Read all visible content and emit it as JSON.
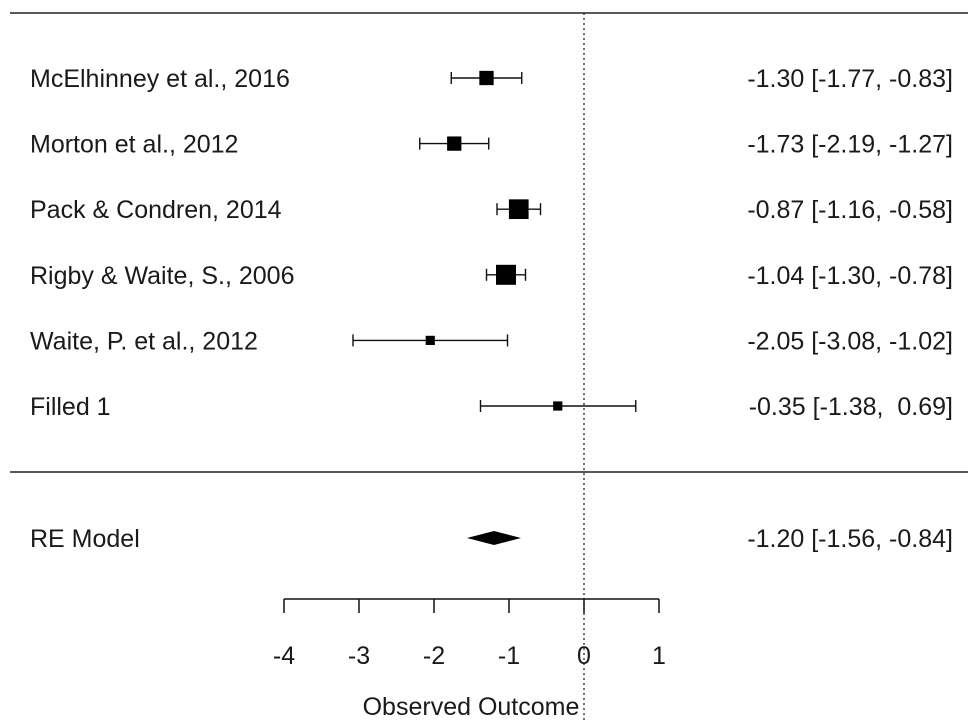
{
  "chart_data": {
    "type": "forest",
    "title": "",
    "xlabel": "Observed Outcome",
    "ylabel": "",
    "xlim": [
      -4,
      1
    ],
    "xticks": [
      -4,
      -3,
      -2,
      -1,
      0,
      1
    ],
    "xtick_labels": [
      "-4",
      "-3",
      "-2",
      "-1",
      "0",
      "1"
    ],
    "reference_line": 0,
    "studies": [
      {
        "label": "McElhinney et al., 2016",
        "estimate": -1.3,
        "lower": -1.77,
        "upper": -0.83,
        "ci_text": "-1.30 [-1.77, -0.83]",
        "weight": 0.62
      },
      {
        "label": "Morton et al., 2012",
        "estimate": -1.73,
        "lower": -2.19,
        "upper": -1.27,
        "ci_text": "-1.73 [-2.19, -1.27]",
        "weight": 0.62
      },
      {
        "label": "Pack & Condren, 2014",
        "estimate": -0.87,
        "lower": -1.16,
        "upper": -0.58,
        "ci_text": "-0.87 [-1.16, -0.58]",
        "weight": 0.98
      },
      {
        "label": "Rigby & Waite, S., 2006",
        "estimate": -1.04,
        "lower": -1.3,
        "upper": -0.78,
        "ci_text": "-1.04 [-1.30, -0.78]",
        "weight": 1.0
      },
      {
        "label": "Waite, P. et al., 2012",
        "estimate": -2.05,
        "lower": -3.08,
        "upper": -1.02,
        "ci_text": "-2.05 [-3.08, -1.02]",
        "weight": 0.28
      },
      {
        "label": "Filled 1",
        "estimate": -0.35,
        "lower": -1.38,
        "upper": 0.69,
        "ci_text": "-0.35 [-1.38,  0.69]",
        "weight": 0.28
      }
    ],
    "summary": {
      "label": "RE Model",
      "estimate": -1.2,
      "lower": -1.56,
      "upper": -0.84,
      "ci_text": "-1.20 [-1.56, -0.84]"
    }
  }
}
